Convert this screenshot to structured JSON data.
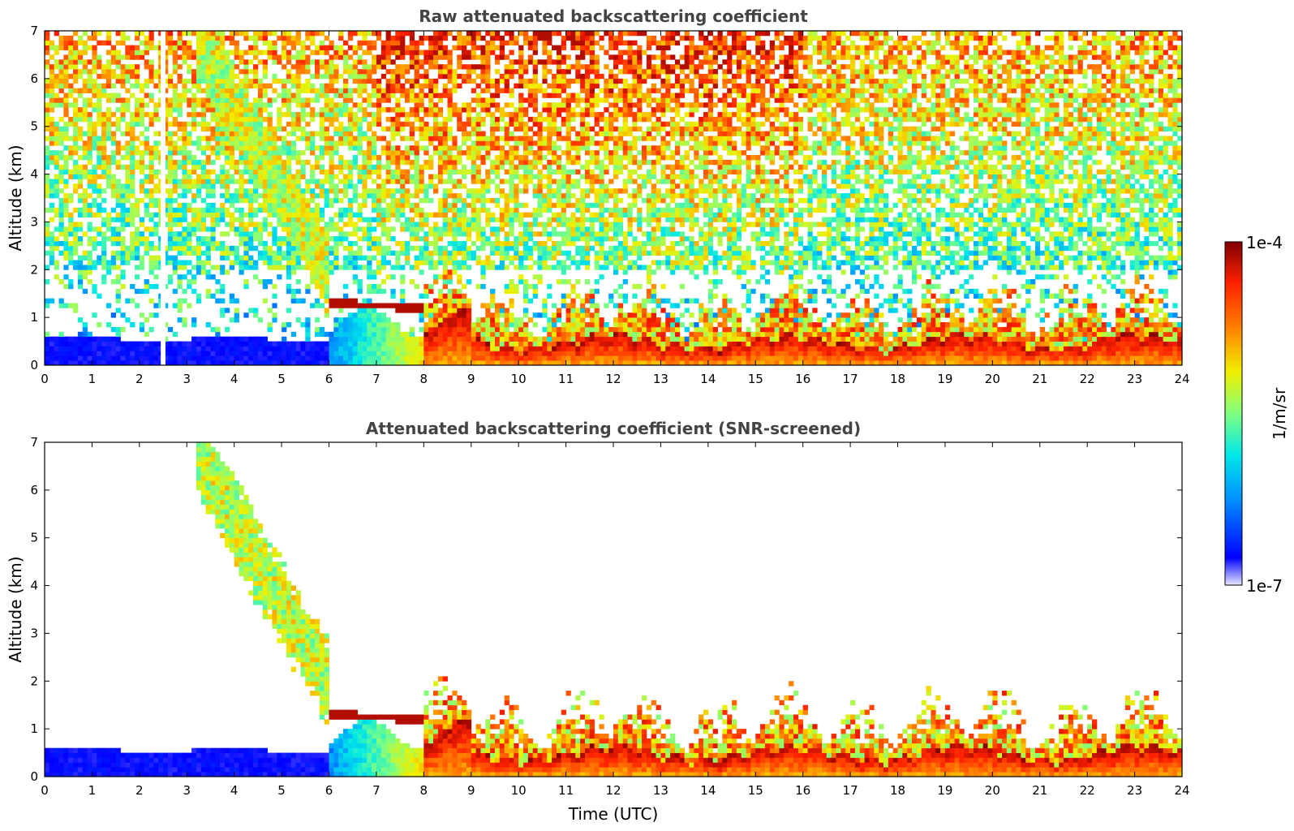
{
  "chart_data": [
    {
      "type": "heatmap",
      "title": "Raw attenuated backscattering coefficient",
      "xlabel": "",
      "ylabel": "Altitude (km)",
      "xlim": [
        0,
        24
      ],
      "ylim": [
        0,
        7
      ],
      "xticks": [
        "0",
        "1",
        "2",
        "3",
        "4",
        "5",
        "6",
        "7",
        "8",
        "9",
        "10",
        "11",
        "12",
        "13",
        "14",
        "15",
        "16",
        "17",
        "18",
        "19",
        "20",
        "21",
        "22",
        "23",
        "24"
      ],
      "yticks": [
        "0",
        "1",
        "2",
        "3",
        "4",
        "5",
        "6",
        "7"
      ],
      "grid": false,
      "data_gap": {
        "x_start": 2.45,
        "x_end": 2.55
      },
      "features": [
        {
          "desc": "boundary layer",
          "x": [
            0,
            24
          ],
          "top_km": [
            0.5,
            0.3
          ]
        },
        {
          "desc": "descending cloud",
          "x": [
            3.2,
            6.0
          ],
          "alt_km": [
            6.8,
            1.9
          ]
        },
        {
          "desc": "low cloud layer",
          "x": [
            6,
            8
          ],
          "alt_km": [
            1.3,
            1.2
          ]
        }
      ]
    },
    {
      "type": "heatmap",
      "title": "Attenuated backscattering coefficient (SNR-screened)",
      "xlabel": "Time (UTC)",
      "ylabel": "Altitude (km)",
      "xlim": [
        0,
        24
      ],
      "ylim": [
        0,
        7
      ],
      "xticks": [
        "0",
        "1",
        "2",
        "3",
        "4",
        "5",
        "6",
        "7",
        "8",
        "9",
        "10",
        "11",
        "12",
        "13",
        "14",
        "15",
        "16",
        "17",
        "18",
        "19",
        "20",
        "21",
        "22",
        "23",
        "24"
      ],
      "yticks": [
        "0",
        "1",
        "2",
        "3",
        "4",
        "5",
        "6",
        "7"
      ],
      "grid": false
    }
  ],
  "colorbar": {
    "label": "1/m/sr",
    "max_label": "1e-4",
    "min_label": "1e-7",
    "scale": "log",
    "colormap": "jet",
    "colors": [
      "#e8e8ff",
      "#0000ff",
      "#0090ff",
      "#00e8e8",
      "#80ff80",
      "#f0f000",
      "#ff8000",
      "#ff2000",
      "#800000"
    ]
  }
}
